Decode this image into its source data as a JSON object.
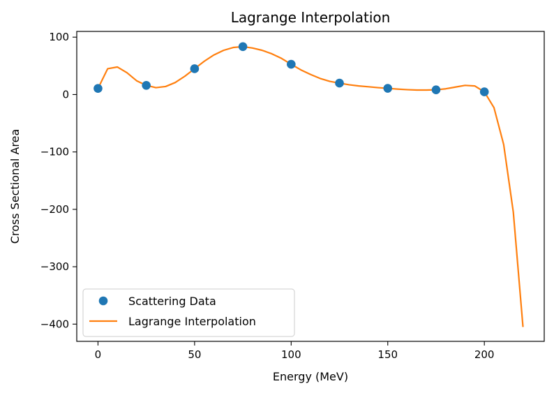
{
  "chart_data": {
    "type": "line",
    "title": "Lagrange Interpolation",
    "xlabel": "Energy (MeV)",
    "ylabel": "Cross Sectional Area",
    "xlim": [
      -11,
      231
    ],
    "ylim": [
      -430,
      110
    ],
    "xticks": [
      0,
      50,
      100,
      150,
      200
    ],
    "yticks": [
      -400,
      -300,
      -200,
      -100,
      0,
      100
    ],
    "grid": false,
    "legend_position": "lower-left",
    "series": [
      {
        "name": "Scattering Data",
        "kind": "scatter",
        "color": "#1f77b4",
        "x": [
          0,
          25,
          50,
          75,
          100,
          125,
          150,
          175,
          200
        ],
        "y": [
          10.6,
          16.0,
          45.0,
          83.5,
          52.8,
          19.9,
          10.8,
          8.25,
          4.7
        ]
      },
      {
        "name": "Lagrange Interpolation",
        "kind": "line",
        "color": "#ff7f0e",
        "x": [
          0,
          5,
          10,
          15,
          20,
          25,
          30,
          35,
          40,
          45,
          50,
          55,
          60,
          65,
          70,
          75,
          80,
          85,
          90,
          95,
          100,
          105,
          110,
          115,
          120,
          125,
          130,
          135,
          140,
          145,
          150,
          155,
          160,
          165,
          170,
          175,
          180,
          185,
          190,
          195,
          200,
          205,
          210,
          215,
          220
        ],
        "y": [
          10.6,
          45,
          48,
          38,
          24,
          16,
          12,
          14,
          21,
          32,
          45,
          58,
          69,
          77,
          82,
          83.5,
          81,
          77,
          71,
          63,
          52.8,
          43,
          35,
          28,
          23,
          19.9,
          17,
          15,
          13.5,
          12,
          10.8,
          9.5,
          8.5,
          7.8,
          7.8,
          8.25,
          10,
          13,
          16,
          15,
          4.7,
          -23,
          -87,
          -205,
          -405
        ]
      }
    ]
  }
}
